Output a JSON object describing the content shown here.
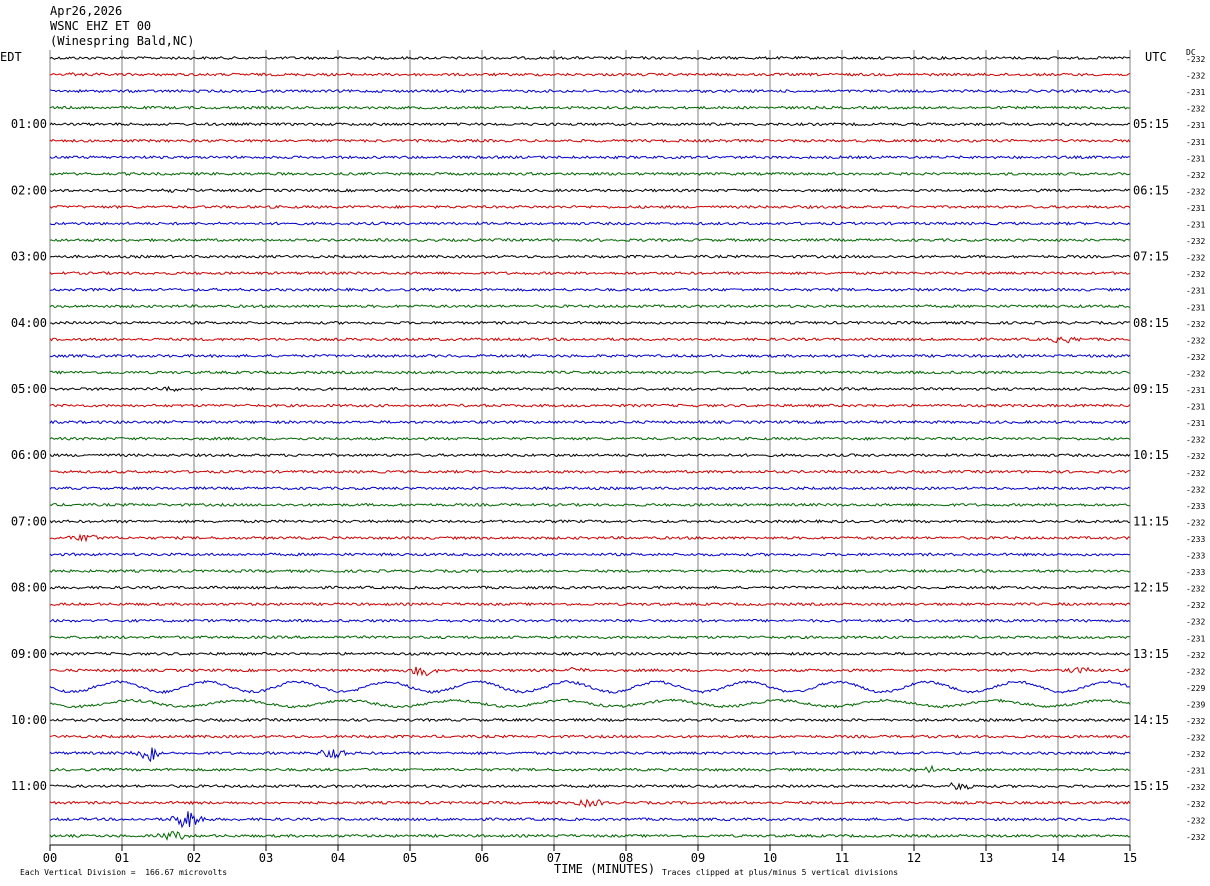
{
  "header": {
    "date": "Apr26,2026",
    "station": "WSNC EHZ ET 00",
    "location": "(Winespring Bald,NC)"
  },
  "labels": {
    "left_tz": "EDT",
    "right_tz": "UTC",
    "dc": "DC"
  },
  "colors": {
    "black": "#000000",
    "red": "#cc0000",
    "blue": "#0000cc",
    "green": "#006600"
  },
  "chart_data": {
    "type": "line",
    "title": "",
    "xlabel": "TIME (MINUTES)",
    "x_ticks": [
      "00",
      "01",
      "02",
      "03",
      "04",
      "05",
      "06",
      "07",
      "08",
      "09",
      "10",
      "11",
      "12",
      "13",
      "14",
      "15"
    ],
    "xlim": [
      0,
      15
    ],
    "trace_colors": [
      "black",
      "red",
      "blue",
      "green"
    ],
    "hour_labels_left": [
      "01:00",
      "02:00",
      "03:00",
      "04:00",
      "05:00",
      "06:00",
      "07:00",
      "08:00",
      "09:00",
      "10:00",
      "11:00"
    ],
    "hour_labels_right": [
      "05:15",
      "06:15",
      "07:15",
      "08:15",
      "09:15",
      "10:15",
      "11:15",
      "12:15",
      "13:15",
      "14:15",
      "15:15"
    ],
    "dc_offsets": [
      "-232",
      "-232",
      "-231",
      "-232",
      "-231",
      "-231",
      "-231",
      "-232",
      "-232",
      "-231",
      "-231",
      "-232",
      "-232",
      "-232",
      "-231",
      "-231",
      "-232",
      "-232",
      "-232",
      "-232",
      "-231",
      "-231",
      "-231",
      "-232",
      "-232",
      "-232",
      "-232",
      "-233",
      "-232",
      "-233",
      "-233",
      "-233",
      "-232",
      "-232",
      "-232",
      "-231",
      "-232",
      "-232",
      "-229",
      "-239",
      "-232",
      "-232",
      "-232",
      "-231",
      "-232",
      "-232",
      "-232",
      "-232"
    ],
    "events": [
      {
        "row": 1,
        "minute": 0.4,
        "amp": 2
      },
      {
        "row": 8,
        "minute": 1.7,
        "amp": 2
      },
      {
        "row": 17,
        "minute": 14.1,
        "amp": 4
      },
      {
        "row": 20,
        "minute": 1.7,
        "amp": 3
      },
      {
        "row": 29,
        "minute": 0.5,
        "amp": 5
      },
      {
        "row": 37,
        "minute": 5.2,
        "amp": 6
      },
      {
        "row": 37,
        "minute": 7.3,
        "amp": 3
      },
      {
        "row": 37,
        "minute": 14.3,
        "amp": 3
      },
      {
        "row": 42,
        "minute": 1.4,
        "amp": 9
      },
      {
        "row": 42,
        "minute": 3.9,
        "amp": 7
      },
      {
        "row": 43,
        "minute": 12.2,
        "amp": 3
      },
      {
        "row": 44,
        "minute": 12.6,
        "amp": 4
      },
      {
        "row": 45,
        "minute": 7.5,
        "amp": 4
      },
      {
        "row": 46,
        "minute": 1.9,
        "amp": 10
      },
      {
        "row": 47,
        "minute": 1.7,
        "amp": 5
      }
    ],
    "waves": [
      {
        "row": 38,
        "amplitude": 5,
        "periods": 12
      },
      {
        "row": 39,
        "amplitude": 3,
        "periods": 10
      }
    ]
  },
  "footer": {
    "scale": "Each Vertical Division =  166.67 microvolts",
    "clip": "Traces clipped at plus/minus 5 vertical divisions"
  }
}
